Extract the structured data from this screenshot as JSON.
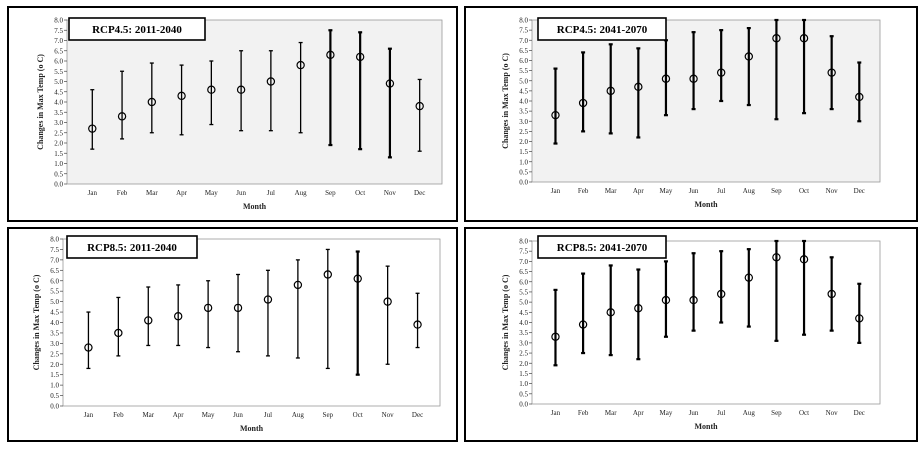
{
  "chart_data": [
    {
      "type": "errorbar",
      "title": "RCP4.5: 2011-2040",
      "xlabel": "Month",
      "ylabel": "Changes in Max Temp (o C)",
      "categories": [
        "Jan",
        "Feb",
        "Mar",
        "Apr",
        "May",
        "Jun",
        "Jul",
        "Aug",
        "Sep",
        "Oct",
        "Nov",
        "Dec"
      ],
      "mean": [
        2.7,
        3.3,
        4.0,
        4.3,
        4.6,
        4.6,
        5.0,
        5.8,
        6.3,
        6.2,
        4.9,
        3.8
      ],
      "lower": [
        1.7,
        2.2,
        2.5,
        2.4,
        2.9,
        2.6,
        2.6,
        2.5,
        1.9,
        1.7,
        1.3,
        1.6
      ],
      "upper": [
        4.6,
        5.5,
        5.9,
        5.8,
        6.0,
        6.5,
        6.5,
        6.9,
        7.5,
        7.4,
        6.6,
        5.1
      ],
      "ylim": [
        0,
        8
      ],
      "yticks": [
        "0.0",
        "0.5",
        "1.0",
        "1.5",
        "2.0",
        "2.5",
        "3.0",
        "3.5",
        "4.0",
        "4.5",
        "5.0",
        "5.5",
        "6.0",
        "6.5",
        "7.0",
        "7.5",
        "8.0"
      ]
    },
    {
      "type": "errorbar",
      "title": "RCP4.5: 2041-2070",
      "xlabel": "Month",
      "ylabel": "Changes in Max Temp (o C)",
      "categories": [
        "Jan",
        "Feb",
        "Mar",
        "Apr",
        "May",
        "Jun",
        "Jul",
        "Aug",
        "Sep",
        "Oct",
        "Nov",
        "Dec"
      ],
      "mean": [
        3.3,
        3.9,
        4.5,
        4.7,
        5.1,
        5.1,
        5.4,
        6.2,
        7.1,
        7.1,
        5.4,
        4.2
      ],
      "lower": [
        1.9,
        2.5,
        2.4,
        2.2,
        3.3,
        3.6,
        4.0,
        3.8,
        3.1,
        3.4,
        3.6,
        3.0
      ],
      "upper": [
        5.6,
        6.4,
        6.8,
        6.6,
        7.0,
        7.4,
        7.5,
        7.6,
        8.0,
        8.0,
        7.2,
        5.9
      ],
      "ylim": [
        0,
        8
      ],
      "yticks": [
        "0.0",
        "0.5",
        "1.0",
        "1.5",
        "2.0",
        "2.5",
        "3.0",
        "3.5",
        "4.0",
        "4.5",
        "5.0",
        "5.5",
        "6.0",
        "6.5",
        "7.0",
        "7.5",
        "8.0"
      ]
    },
    {
      "type": "errorbar",
      "title": "RCP8.5: 2011-2040",
      "xlabel": "Month",
      "ylabel": "Changes in Max Temp (o C)",
      "categories": [
        "Jan",
        "Feb",
        "Mar",
        "Apr",
        "May",
        "Jun",
        "Jul",
        "Aug",
        "Sep",
        "Oct",
        "Nov",
        "Dec"
      ],
      "mean": [
        2.8,
        3.5,
        4.1,
        4.3,
        4.7,
        4.7,
        5.1,
        5.8,
        6.3,
        6.1,
        5.0,
        3.9
      ],
      "lower": [
        1.8,
        2.4,
        2.9,
        2.9,
        2.8,
        2.6,
        2.4,
        2.3,
        1.8,
        1.5,
        2.0,
        2.8
      ],
      "upper": [
        4.5,
        5.2,
        5.7,
        5.8,
        6.0,
        6.3,
        6.5,
        7.0,
        7.5,
        7.4,
        6.7,
        5.4
      ],
      "ylim": [
        0,
        8
      ],
      "yticks": [
        "0.0",
        "0.5",
        "1.0",
        "1.5",
        "2.0",
        "2.5",
        "3.0",
        "3.5",
        "4.0",
        "4.5",
        "5.0",
        "5.5",
        "6.0",
        "6.5",
        "7.0",
        "7.5",
        "8.0"
      ]
    },
    {
      "type": "errorbar",
      "title": "RCP8.5: 2041-2070",
      "xlabel": "Month",
      "ylabel": "Changes in Max Temp (o C)",
      "categories": [
        "Jan",
        "Feb",
        "Mar",
        "Apr",
        "May",
        "Jun",
        "Jul",
        "Aug",
        "Sep",
        "Oct",
        "Nov",
        "Dec"
      ],
      "mean": [
        3.3,
        3.9,
        4.5,
        4.7,
        5.1,
        5.1,
        5.4,
        6.2,
        7.2,
        7.1,
        5.4,
        4.2
      ],
      "lower": [
        1.9,
        2.5,
        2.4,
        2.2,
        3.3,
        3.6,
        4.0,
        3.8,
        3.1,
        3.4,
        3.6,
        3.0
      ],
      "upper": [
        5.6,
        6.4,
        6.8,
        6.6,
        7.0,
        7.4,
        7.5,
        7.6,
        8.0,
        8.0,
        7.2,
        5.9
      ],
      "ylim": [
        0,
        8
      ],
      "yticks": [
        "0.0",
        "0.5",
        "1.0",
        "1.5",
        "2.0",
        "2.5",
        "3.0",
        "3.5",
        "4.0",
        "4.5",
        "5.0",
        "5.5",
        "6.0",
        "6.5",
        "7.0",
        "7.5",
        "8.0"
      ]
    }
  ]
}
